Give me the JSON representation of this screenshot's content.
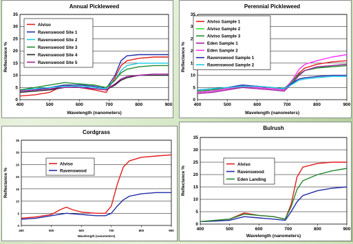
{
  "chart_data": [
    {
      "type": "line",
      "title": "Annual Pickleweed",
      "xlabel": "Wavelength (nanometers)",
      "ylabel": "Reflectance %",
      "xlim": [
        400,
        900
      ],
      "ylim": [
        0,
        35
      ],
      "xticks": [
        400,
        500,
        600,
        700,
        800,
        900
      ],
      "yticks": [
        0,
        5,
        10,
        15,
        20,
        25,
        30,
        35
      ],
      "grid": true,
      "legend_position": "top-left",
      "series": [
        {
          "name": "Alviso",
          "color": "#e31a1c",
          "x": [
            400,
            450,
            500,
            550,
            600,
            650,
            690,
            720,
            740,
            760,
            800,
            850,
            900
          ],
          "y": [
            1.5,
            2,
            3,
            6,
            5,
            4,
            3,
            9,
            14,
            16,
            17,
            17.5,
            17.5
          ]
        },
        {
          "name": "Ravenswood Site 1",
          "color": "#1f2aa8",
          "x": [
            400,
            450,
            500,
            550,
            600,
            650,
            690,
            720,
            740,
            760,
            800,
            850,
            900
          ],
          "y": [
            3.5,
            4,
            5,
            6,
            6,
            5.5,
            4.5,
            10,
            16,
            18,
            18.5,
            18.5,
            18.5
          ]
        },
        {
          "name": "Ravenswood Site 2",
          "color": "#18c8e6",
          "x": [
            400,
            450,
            500,
            550,
            600,
            650,
            690,
            720,
            740,
            760,
            800,
            850,
            900
          ],
          "y": [
            4,
            4.5,
            5,
            5.5,
            5.5,
            5,
            4.5,
            8,
            12,
            14,
            15,
            15,
            15
          ]
        },
        {
          "name": "Ravenswood Site 3",
          "color": "#1e8a2e",
          "x": [
            400,
            450,
            500,
            550,
            600,
            650,
            690,
            720,
            740,
            760,
            800,
            850,
            900
          ],
          "y": [
            4,
            5,
            6,
            7,
            6.5,
            6,
            5,
            8,
            11,
            12.5,
            13.5,
            14,
            14
          ]
        },
        {
          "name": "Ravenswood Site 4",
          "color": "#222222",
          "x": [
            400,
            450,
            500,
            550,
            600,
            650,
            690,
            720,
            740,
            760,
            800,
            850,
            900
          ],
          "y": [
            3,
            3.5,
            4,
            5,
            5,
            4.5,
            4,
            6,
            8,
            9,
            10,
            10,
            10
          ]
        },
        {
          "name": "Ravenswood Site 5",
          "color": "#a01ca0",
          "x": [
            400,
            450,
            500,
            550,
            600,
            650,
            690,
            720,
            740,
            760,
            800,
            850,
            900
          ],
          "y": [
            3.5,
            4,
            4.5,
            5,
            5,
            4.5,
            4,
            6.5,
            8.5,
            9.5,
            10,
            10.5,
            10.5
          ]
        }
      ]
    },
    {
      "type": "line",
      "title": "Perennial Pickleweed",
      "xlabel": "Wavelength (nanometers)",
      "ylabel": "Reflectance %",
      "xlim": [
        400,
        900
      ],
      "ylim": [
        0,
        35
      ],
      "xticks": [
        400,
        500,
        600,
        700,
        800,
        900
      ],
      "yticks": [
        0,
        5,
        10,
        15,
        20,
        25,
        30,
        35
      ],
      "grid": true,
      "legend_position": "top-left",
      "series": [
        {
          "name": "Alviso Sample 1",
          "color": "#e31a1c",
          "x": [
            400,
            450,
            500,
            550,
            600,
            650,
            690,
            720,
            740,
            760,
            800,
            850,
            900
          ],
          "y": [
            3,
            3.5,
            4.5,
            5.5,
            5,
            4.5,
            4,
            8,
            11,
            13,
            14.5,
            15.5,
            16
          ]
        },
        {
          "name": "Alviso Sample 2",
          "color": "#33dd33",
          "x": [
            400,
            450,
            500,
            550,
            600,
            650,
            690,
            720,
            740,
            760,
            800,
            850,
            900
          ],
          "y": [
            3,
            3.5,
            4.5,
            5,
            5,
            4.5,
            4,
            7.5,
            10,
            12,
            13,
            14,
            14.5
          ]
        },
        {
          "name": "Alviso Sample 3",
          "color": "#1e8a2e",
          "x": [
            400,
            450,
            500,
            550,
            600,
            650,
            690,
            720,
            740,
            760,
            800,
            850,
            900
          ],
          "y": [
            3.5,
            4,
            5,
            5.5,
            5.5,
            5,
            4.5,
            8,
            10.5,
            12,
            13,
            13.5,
            14
          ]
        },
        {
          "name": "Eden Sample 1",
          "color": "#a01ca0",
          "x": [
            400,
            450,
            500,
            550,
            600,
            650,
            690,
            720,
            740,
            760,
            800,
            850,
            900
          ],
          "y": [
            2.5,
            3,
            4,
            5,
            4.5,
            4,
            3.5,
            7,
            10,
            12,
            13.5,
            14,
            14.5
          ]
        },
        {
          "name": "Eden Sample 2",
          "color": "#ff33ff",
          "x": [
            400,
            450,
            500,
            550,
            600,
            650,
            690,
            720,
            740,
            760,
            800,
            850,
            900
          ],
          "y": [
            3,
            3.5,
            4.5,
            5.5,
            5,
            4.5,
            4,
            8.5,
            12.5,
            14.5,
            16,
            17.5,
            18.5
          ]
        },
        {
          "name": "Ravenswood Sample 1",
          "color": "#1f2aa8",
          "x": [
            400,
            450,
            500,
            550,
            600,
            650,
            690,
            720,
            740,
            760,
            800,
            850,
            900
          ],
          "y": [
            4,
            4.5,
            5,
            6,
            5.5,
            5,
            4.5,
            7,
            8.5,
            9,
            9.5,
            10,
            10
          ]
        },
        {
          "name": "Ravenswood Sample 2",
          "color": "#18c8e6",
          "x": [
            400,
            450,
            500,
            550,
            600,
            650,
            690,
            720,
            740,
            760,
            800,
            850,
            900
          ],
          "y": [
            4,
            4.5,
            5,
            5.5,
            5.5,
            5,
            4.5,
            6.5,
            8,
            8.5,
            9,
            9.5,
            9.5
          ]
        }
      ]
    },
    {
      "type": "line",
      "title": "Cordgrass",
      "xlabel": "Wavelength (nanometers)",
      "ylabel": "Reflectance %",
      "xlim": [
        400,
        900
      ],
      "ylim": [
        0,
        35
      ],
      "xticks": [
        400,
        500,
        600,
        700,
        800,
        900
      ],
      "yticks": [
        0,
        5,
        10,
        15,
        20,
        25,
        30,
        35
      ],
      "grid": true,
      "legend_position": "top-left",
      "series": [
        {
          "name": "Alviso",
          "color": "#e31a1c",
          "x": [
            400,
            450,
            500,
            530,
            550,
            570,
            600,
            650,
            680,
            700,
            720,
            740,
            760,
            800,
            850,
            900
          ],
          "y": [
            3,
            3.5,
            4.5,
            6.5,
            7.5,
            6.5,
            5.5,
            5,
            5,
            8,
            17,
            24,
            26.5,
            28,
            28.5,
            29
          ]
        },
        {
          "name": "Ravenswood",
          "color": "#1f2aa8",
          "x": [
            400,
            450,
            500,
            550,
            600,
            650,
            680,
            700,
            720,
            740,
            760,
            800,
            850,
            900
          ],
          "y": [
            2.5,
            3,
            4,
            5,
            4.5,
            4,
            4,
            5,
            8,
            10.5,
            12,
            13,
            13.5,
            13.5
          ]
        }
      ]
    },
    {
      "type": "line",
      "title": "Bulrush",
      "xlabel": "Wavelength (nanometers)",
      "ylabel": "Reflectance %",
      "xlim": [
        400,
        900
      ],
      "ylim": [
        0,
        35
      ],
      "xticks": [
        400,
        500,
        600,
        700,
        800,
        900
      ],
      "yticks": [
        0,
        5,
        10,
        15,
        20,
        25,
        30,
        35
      ],
      "grid": true,
      "legend_position": "top-left",
      "series": [
        {
          "name": "Alviso",
          "color": "#e31a1c",
          "x": [
            400,
            450,
            500,
            550,
            600,
            650,
            690,
            710,
            730,
            750,
            800,
            850,
            900
          ],
          "y": [
            1,
            1.5,
            2,
            4.5,
            3.5,
            3,
            2,
            8,
            19,
            23,
            24.5,
            25,
            25
          ]
        },
        {
          "name": "Ravenswood",
          "color": "#1f2aa8",
          "x": [
            400,
            450,
            500,
            550,
            600,
            650,
            690,
            710,
            730,
            750,
            800,
            850,
            900
          ],
          "y": [
            1,
            1.2,
            1.5,
            3,
            2.5,
            2,
            1.5,
            5,
            9,
            11.5,
            13.5,
            14.5,
            15
          ]
        },
        {
          "name": "Eden Landing",
          "color": "#1e8a2e",
          "x": [
            400,
            450,
            500,
            550,
            600,
            650,
            690,
            710,
            730,
            750,
            800,
            850,
            900
          ],
          "y": [
            1,
            1.5,
            2,
            4,
            3.5,
            3,
            2,
            7,
            14,
            17.5,
            20,
            21.5,
            22.5
          ]
        }
      ]
    }
  ]
}
